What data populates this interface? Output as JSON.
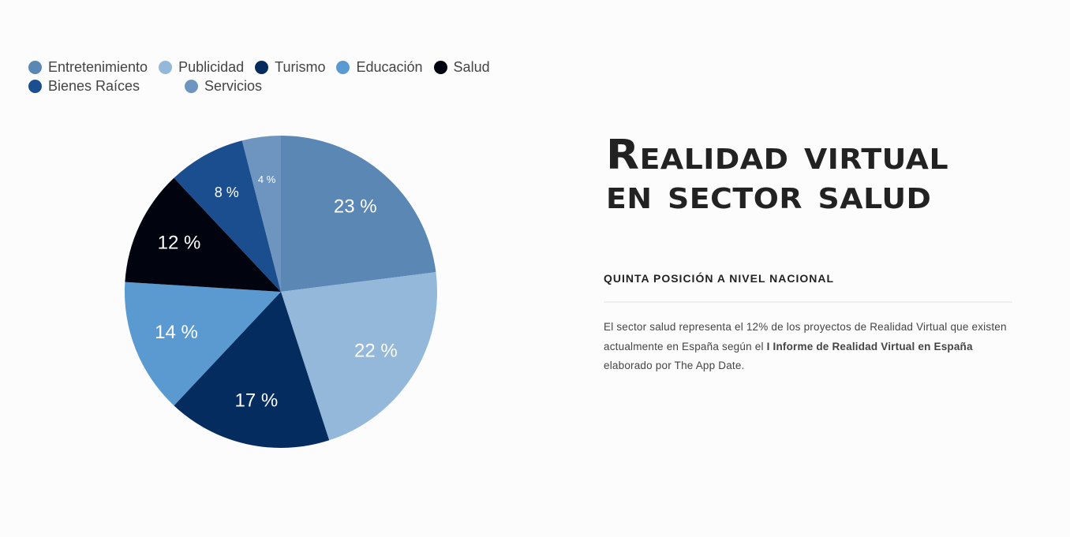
{
  "chart_data": {
    "type": "pie",
    "categories": [
      "Entretenimiento",
      "Publicidad",
      "Turismo",
      "Educación",
      "Salud",
      "Bienes Raíces",
      "Servicios"
    ],
    "values": [
      23,
      22,
      17,
      14,
      12,
      8,
      4
    ],
    "labels": [
      "23 %",
      "22 %",
      "17 %",
      "14 %",
      "12 %",
      "8 %",
      "4 %"
    ],
    "colors": [
      "#5b87b5",
      "#94b8da",
      "#042c5e",
      "#5b9ad0",
      "#01040f",
      "#1b4e8e",
      "#6e95c0"
    ],
    "start": "top",
    "direction": "clockwise",
    "legend_position": "top-left"
  },
  "article": {
    "title_line1": "Realidad virtual",
    "title_line2": "en sector salud",
    "subtitle": "QUINTA POSICIÓN A NIVEL NACIONAL",
    "body_part1": "El sector salud representa el 12% de los proyectos de Realidad Virtual que existen actualmente en España según el ",
    "body_bold": "I Informe de Realidad Virtual en España",
    "body_part2": " elaborado por The App Date."
  }
}
